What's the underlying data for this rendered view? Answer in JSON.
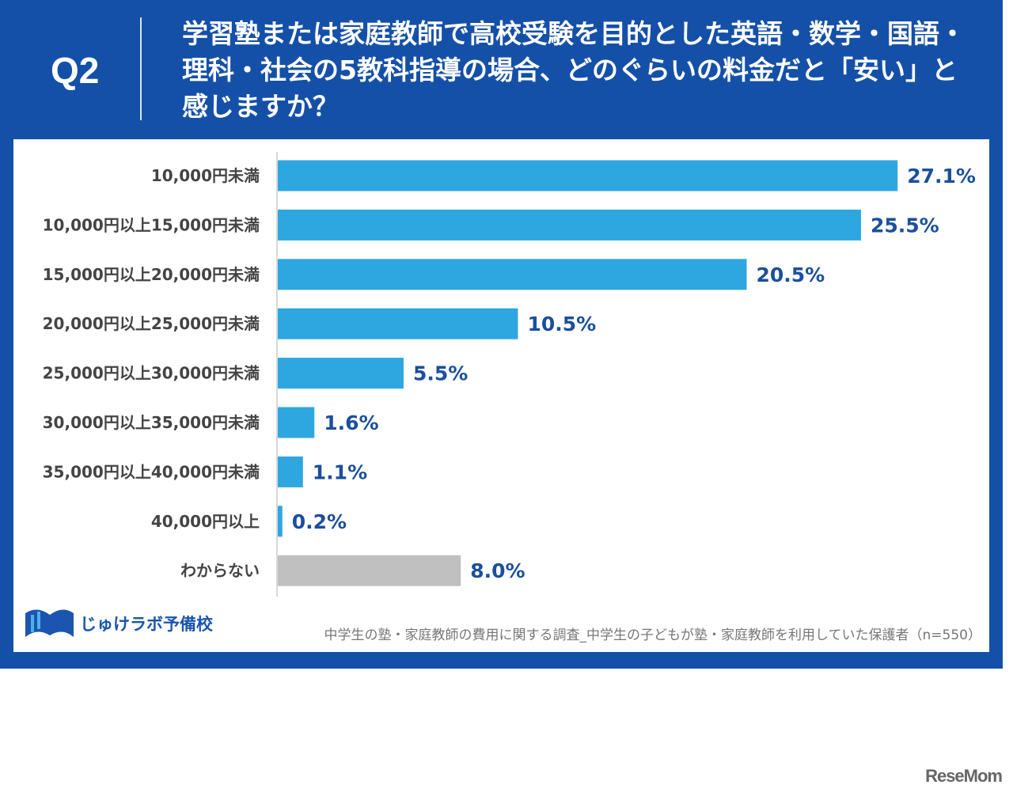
{
  "header": {
    "q_label": "Q2",
    "title": "学習塾または家庭教師で高校受験を目的とした英語・数学・国語・理科・社会の5教科指導の場合、どのぐらいの料金だと「安い」と感じますか？"
  },
  "chart_data": {
    "type": "bar",
    "orientation": "horizontal",
    "categories": [
      "10,000円未満",
      "10,000円以上15,000円未満",
      "15,000円以上20,000円未満",
      "20,000円以上25,000円未満",
      "25,000円以上30,000円未満",
      "30,000円以上35,000円未満",
      "35,000円以上40,000円未満",
      "40,000円以上",
      "わからない"
    ],
    "values": [
      27.1,
      25.5,
      20.5,
      10.5,
      5.5,
      1.6,
      1.1,
      0.2,
      8.0
    ],
    "labels": [
      "27.1%",
      "25.5%",
      "20.5%",
      "10.5%",
      "5.5%",
      "1.6%",
      "1.1%",
      "0.2%",
      "8.0%"
    ],
    "unit": "%",
    "colors": {
      "main": "#2ea7e0",
      "unknown": "#c0c0c0",
      "label": "#1b4f9c"
    },
    "xlim": [
      0,
      30
    ]
  },
  "footer": {
    "logo": "じゅけラボ予備校",
    "source": "中学生の塾・家庭教師の費用に関する調査_中学生の子どもが塾・家庭教師を利用していた保護者（n=550）",
    "watermark": "ReseMom"
  }
}
